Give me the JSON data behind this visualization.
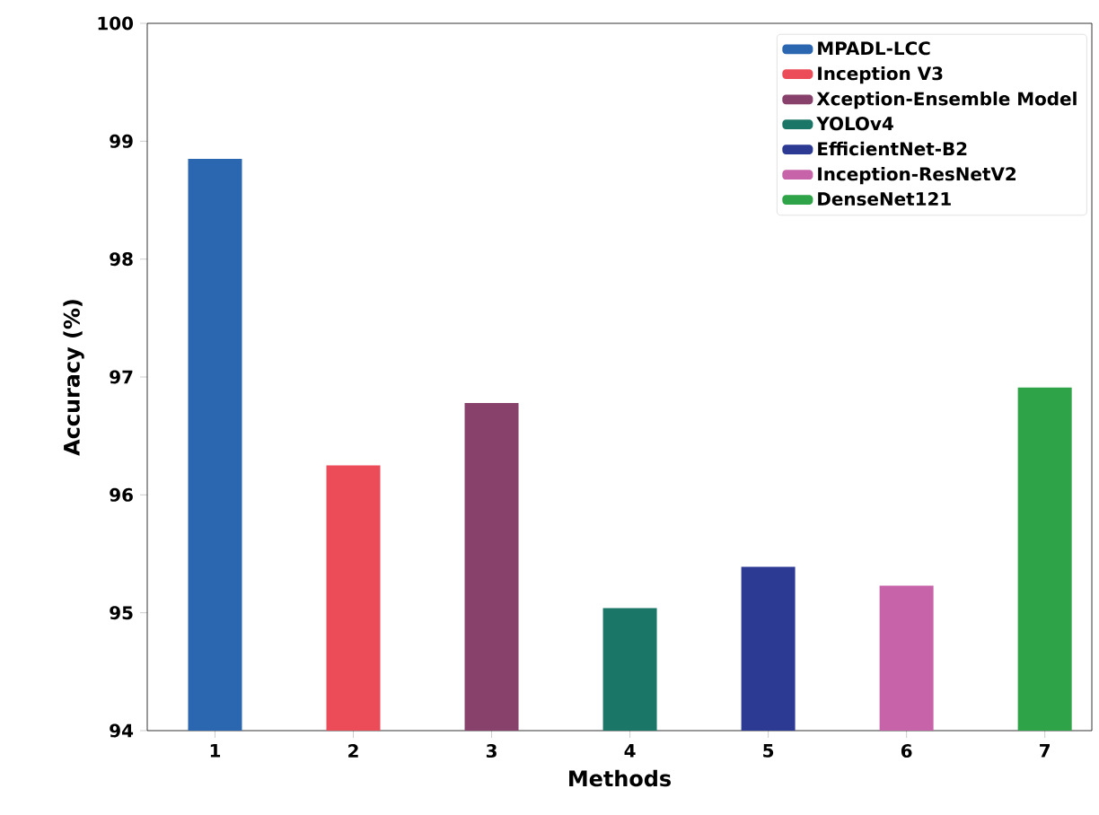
{
  "chart_data": {
    "type": "bar",
    "xlabel": "Methods",
    "ylabel": "Accuracy (%)",
    "categories": [
      "1",
      "2",
      "3",
      "4",
      "5",
      "6",
      "7"
    ],
    "series": [
      {
        "name": "MPADL-LCC",
        "color": "#2a67b0",
        "values": [
          98.85,
          null,
          null,
          null,
          null,
          null,
          null
        ]
      },
      {
        "name": "Inception V3",
        "color": "#ec4c58",
        "values": [
          null,
          96.25,
          null,
          null,
          null,
          null,
          null
        ]
      },
      {
        "name": "Xception-Ensemble Model",
        "color": "#87416a",
        "values": [
          null,
          null,
          96.78,
          null,
          null,
          null,
          null
        ]
      },
      {
        "name": "YOLOv4",
        "color": "#1a7768",
        "values": [
          null,
          null,
          null,
          95.04,
          null,
          null,
          null
        ]
      },
      {
        "name": "EfficientNet-B2",
        "color": "#2c3a94",
        "values": [
          null,
          null,
          null,
          null,
          95.39,
          null,
          null
        ]
      },
      {
        "name": "Inception-ResNetV2",
        "color": "#c763a8",
        "values": [
          null,
          null,
          null,
          null,
          null,
          95.23,
          null
        ]
      },
      {
        "name": "DenseNet121",
        "color": "#2ea348",
        "values": [
          null,
          null,
          null,
          null,
          null,
          null,
          96.91
        ]
      }
    ],
    "ylim": [
      94,
      100
    ],
    "yticks": [
      94,
      95,
      96,
      97,
      98,
      99,
      100
    ],
    "legend": "top right"
  }
}
